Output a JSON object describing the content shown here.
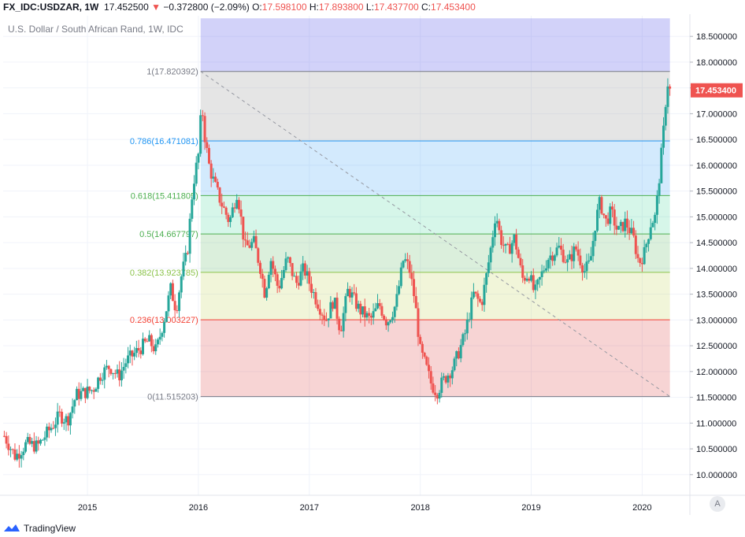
{
  "header": {
    "symbol": "FX_IDC:USDZAR, 1W",
    "last": "17.452500",
    "change_arrow": "▼",
    "change": "−0.372800 (−2.09%)",
    "o_label": "O:",
    "o_value": "17.598100",
    "h_label": "H:",
    "h_value": "17.893800",
    "l_label": "L:",
    "l_value": "17.437700",
    "c_label": "C:",
    "c_value": "17.453400"
  },
  "footer": {
    "brand": "TradingView",
    "auto_label": "A"
  },
  "colors": {
    "up": "#26a69a",
    "down": "#ef5350",
    "fib_100": "#787b86",
    "fib_786": "#2196f3",
    "fib_618": "#4caf50",
    "fib_05": "#4caf50",
    "fib_382": "#8bc34a",
    "fib_236": "#f44336",
    "fib_0": "#787b86"
  },
  "chart_data": {
    "type": "candlestick",
    "title": "U.S. Dollar / South African Rand, 1W, IDC",
    "last_price_label": "17.453400",
    "y_ticks": [
      "18.500000",
      "18.000000",
      "17.500000",
      "17.000000",
      "16.500000",
      "16.000000",
      "15.500000",
      "15.000000",
      "14.500000",
      "14.000000",
      "13.500000",
      "13.000000",
      "12.500000",
      "12.000000",
      "11.500000",
      "11.000000",
      "10.500000",
      "10.000000"
    ],
    "ylim": [
      9.6,
      18.9
    ],
    "x_ticks": [
      {
        "label": "2015",
        "t": 2015.0
      },
      {
        "label": "2016",
        "t": 2016.0
      },
      {
        "label": "2017",
        "t": 2017.0
      },
      {
        "label": "2018",
        "t": 2018.0
      },
      {
        "label": "2019",
        "t": 2019.0
      },
      {
        "label": "2020",
        "t": 2020.0
      }
    ],
    "xlim": [
      2014.24,
      2020.43
    ],
    "fib": {
      "t_start": 2016.02,
      "t_end": 2020.25,
      "levels": [
        {
          "ratio": "1",
          "value": 17.820392,
          "label": "1(17.820392)"
        },
        {
          "ratio": "0.786",
          "value": 16.471081,
          "label": "0.786(16.471081)"
        },
        {
          "ratio": "0.618",
          "value": 15.411805,
          "label": "0.618(15.411805)"
        },
        {
          "ratio": "0.5",
          "value": 14.667797,
          "label": "0.5(14.667797)"
        },
        {
          "ratio": "0.382",
          "value": 13.923785,
          "label": "0.382(13.923785)"
        },
        {
          "ratio": "0.236",
          "value": 13.003227,
          "label": "0.236(13.003227)"
        },
        {
          "ratio": "0",
          "value": 11.515203,
          "label": "0(11.515203)"
        }
      ],
      "band_above": 18.85
    },
    "trend_line": {
      "t1": 2016.02,
      "v1": 17.82,
      "t2": 2020.25,
      "v2": 11.515
    },
    "path_points": [
      [
        2014.25,
        10.75
      ],
      [
        2014.35,
        10.35
      ],
      [
        2014.45,
        10.6
      ],
      [
        2014.55,
        10.55
      ],
      [
        2014.65,
        10.85
      ],
      [
        2014.75,
        11.15
      ],
      [
        2014.82,
        11.05
      ],
      [
        2014.9,
        11.55
      ],
      [
        2014.98,
        11.6
      ],
      [
        2015.05,
        11.65
      ],
      [
        2015.12,
        11.95
      ],
      [
        2015.2,
        12.1
      ],
      [
        2015.28,
        11.9
      ],
      [
        2015.35,
        12.2
      ],
      [
        2015.45,
        12.4
      ],
      [
        2015.55,
        12.6
      ],
      [
        2015.62,
        12.4
      ],
      [
        2015.7,
        13.1
      ],
      [
        2015.75,
        13.6
      ],
      [
        2015.8,
        13.2
      ],
      [
        2015.85,
        13.9
      ],
      [
        2015.9,
        14.3
      ],
      [
        2015.95,
        15.6
      ],
      [
        2016.0,
        16.2
      ],
      [
        2016.03,
        17.2
      ],
      [
        2016.06,
        16.5
      ],
      [
        2016.1,
        15.95
      ],
      [
        2016.15,
        15.6
      ],
      [
        2016.2,
        15.3
      ],
      [
        2016.28,
        14.9
      ],
      [
        2016.35,
        15.5
      ],
      [
        2016.42,
        14.4
      ],
      [
        2016.5,
        14.5
      ],
      [
        2016.56,
        14.0
      ],
      [
        2016.6,
        13.5
      ],
      [
        2016.65,
        14.2
      ],
      [
        2016.72,
        13.6
      ],
      [
        2016.8,
        14.2
      ],
      [
        2016.88,
        13.7
      ],
      [
        2016.95,
        14.0
      ],
      [
        2017.05,
        13.45
      ],
      [
        2017.15,
        13.0
      ],
      [
        2017.22,
        13.4
      ],
      [
        2017.28,
        12.8
      ],
      [
        2017.35,
        13.6
      ],
      [
        2017.45,
        13.2
      ],
      [
        2017.55,
        13.0
      ],
      [
        2017.63,
        13.3
      ],
      [
        2017.7,
        12.95
      ],
      [
        2017.78,
        13.3
      ],
      [
        2017.85,
        14.2
      ],
      [
        2017.9,
        14.0
      ],
      [
        2017.95,
        13.4
      ],
      [
        2018.0,
        12.4
      ],
      [
        2018.05,
        12.1
      ],
      [
        2018.1,
        11.75
      ],
      [
        2018.15,
        11.6
      ],
      [
        2018.2,
        11.8
      ],
      [
        2018.3,
        12.1
      ],
      [
        2018.4,
        12.7
      ],
      [
        2018.48,
        13.5
      ],
      [
        2018.55,
        13.3
      ],
      [
        2018.6,
        13.9
      ],
      [
        2018.65,
        14.6
      ],
      [
        2018.68,
        15.1
      ],
      [
        2018.72,
        14.6
      ],
      [
        2018.78,
        14.3
      ],
      [
        2018.85,
        14.6
      ],
      [
        2018.92,
        13.8
      ],
      [
        2018.98,
        13.9
      ],
      [
        2019.03,
        13.5
      ],
      [
        2019.08,
        13.8
      ],
      [
        2019.15,
        14.2
      ],
      [
        2019.25,
        14.4
      ],
      [
        2019.33,
        14.1
      ],
      [
        2019.4,
        14.4
      ],
      [
        2019.48,
        13.95
      ],
      [
        2019.53,
        14.1
      ],
      [
        2019.58,
        14.9
      ],
      [
        2019.62,
        15.3
      ],
      [
        2019.67,
        14.9
      ],
      [
        2019.72,
        15.1
      ],
      [
        2019.78,
        14.7
      ],
      [
        2019.85,
        14.9
      ],
      [
        2019.92,
        14.6
      ],
      [
        2019.97,
        14.1
      ],
      [
        2020.02,
        14.3
      ],
      [
        2020.08,
        14.9
      ],
      [
        2020.12,
        15.0
      ],
      [
        2020.16,
        15.9
      ],
      [
        2020.19,
        16.6
      ],
      [
        2020.21,
        17.2
      ],
      [
        2020.23,
        17.6
      ],
      [
        2020.25,
        17.45
      ]
    ],
    "candles_per_year": 52
  }
}
